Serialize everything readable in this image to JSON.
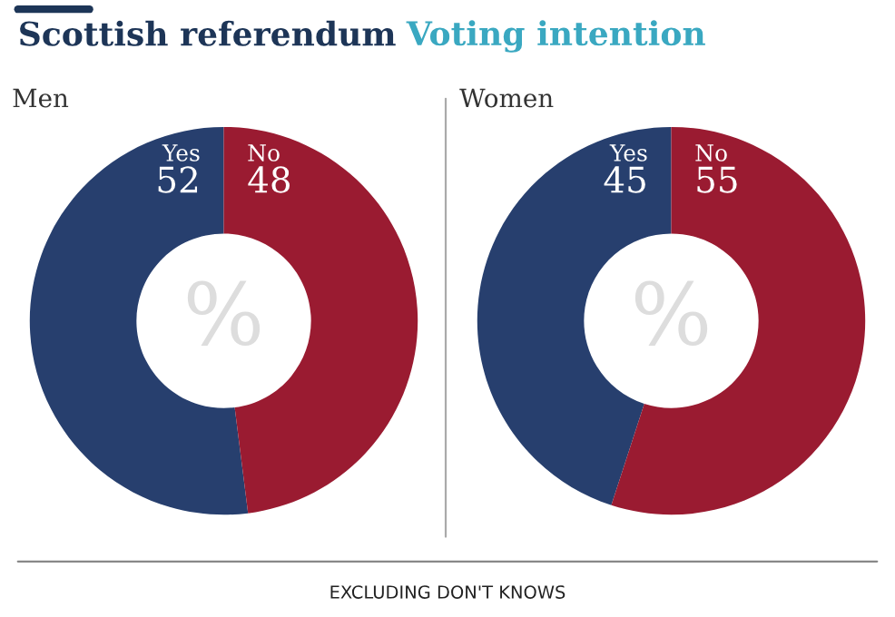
{
  "chart_data": [
    {
      "type": "donut",
      "title": "Men",
      "categories": [
        "Yes",
        "No"
      ],
      "values": [
        52,
        48
      ],
      "colors": [
        "#273f6e",
        "#9a1b31"
      ],
      "data_labels": true,
      "legend": false,
      "annotations": [
        "Scottish referendum",
        "Voting intention",
        "%",
        "EXCLUDING DON'T KNOWS"
      ]
    },
    {
      "type": "donut",
      "title": "Women",
      "categories": [
        "Yes",
        "No"
      ],
      "values": [
        45,
        55
      ],
      "colors": [
        "#273f6e",
        "#9a1b31"
      ],
      "data_labels": true,
      "legend": false,
      "annotations": [
        "%"
      ]
    }
  ]
}
